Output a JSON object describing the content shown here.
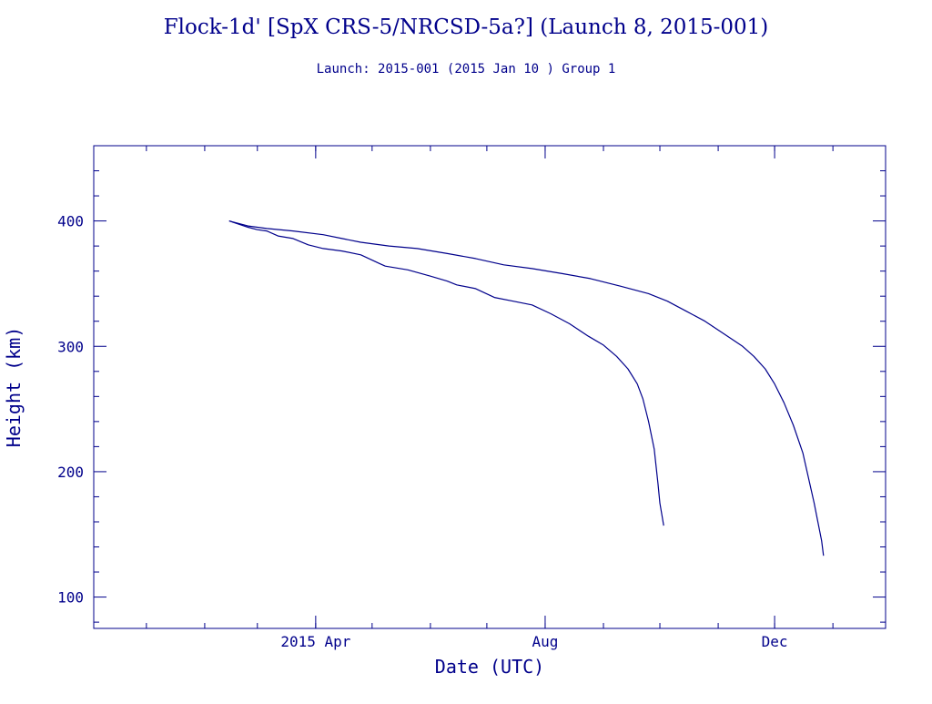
{
  "chart_data": {
    "type": "line",
    "title": "Flock-1d' [SpX CRS-5/NRCSD-5a?] (Launch 8, 2015-001)",
    "subtitle": "Launch: 2015-001  (2015 Jan 10 )  Group 1",
    "xlabel": "Date (UTC)",
    "ylabel": "Height (km)",
    "xticks": [
      {
        "date": "2015-04-01",
        "label": "2015 Apr"
      },
      {
        "date": "2015-08-01",
        "label": "Aug"
      },
      {
        "date": "2015-12-01",
        "label": "Dec"
      }
    ],
    "yticks": [
      100,
      200,
      300,
      400
    ],
    "xlim": [
      "2014-12-04",
      "2016-01-29"
    ],
    "ylim": [
      75,
      460
    ],
    "grid": false,
    "series": [
      {
        "x": [
          "2015-02-14",
          "2015-02-24",
          "2015-03-01",
          "2015-03-06",
          "2015-03-12",
          "2015-03-20",
          "2015-03-28",
          "2015-04-05",
          "2015-04-15",
          "2015-04-25",
          "2015-05-05",
          "2015-05-08",
          "2015-05-20",
          "2015-06-01",
          "2015-06-10",
          "2015-06-15",
          "2015-06-25",
          "2015-07-05",
          "2015-07-15",
          "2015-07-25",
          "2015-08-04",
          "2015-08-14",
          "2015-08-18",
          "2015-08-24",
          "2015-09-01",
          "2015-09-08",
          "2015-09-14",
          "2015-09-19",
          "2015-09-22",
          "2015-09-25",
          "2015-09-28",
          "2015-09-30",
          "2015-10-01",
          "2015-10-02",
          "2015-10-03"
        ],
        "y": [
          400,
          395,
          393,
          392,
          388,
          386,
          381,
          378,
          376,
          373,
          366,
          364,
          361,
          356,
          352,
          349,
          346,
          339,
          336,
          333,
          326,
          318,
          314,
          308,
          301,
          292,
          282,
          270,
          258,
          240,
          218,
          190,
          175,
          166,
          157
        ]
      },
      {
        "x": [
          "2015-02-14",
          "2015-02-24",
          "2015-03-06",
          "2015-03-20",
          "2015-04-05",
          "2015-04-15",
          "2015-04-25",
          "2015-05-10",
          "2015-05-25",
          "2015-06-10",
          "2015-06-25",
          "2015-07-10",
          "2015-07-25",
          "2015-08-10",
          "2015-08-25",
          "2015-09-10",
          "2015-09-25",
          "2015-10-05",
          "2015-10-15",
          "2015-10-25",
          "2015-11-04",
          "2015-11-14",
          "2015-11-20",
          "2015-11-26",
          "2015-12-01",
          "2015-12-06",
          "2015-12-11",
          "2015-12-16",
          "2015-12-19",
          "2015-12-22",
          "2015-12-24",
          "2015-12-26",
          "2015-12-27"
        ],
        "y": [
          400,
          396,
          394,
          392,
          389,
          386,
          383,
          380,
          378,
          374,
          370,
          365,
          362,
          358,
          354,
          348,
          342,
          336,
          328,
          320,
          310,
          300,
          292,
          282,
          270,
          255,
          237,
          215,
          195,
          175,
          160,
          145,
          133
        ]
      }
    ]
  }
}
